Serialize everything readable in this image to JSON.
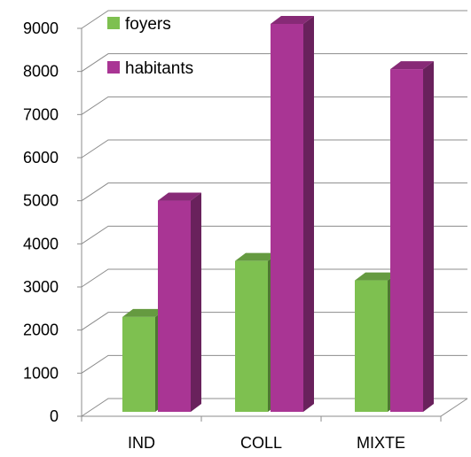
{
  "chart_data": {
    "type": "bar",
    "title": "",
    "xlabel": "",
    "ylabel": "",
    "categories": [
      "IND",
      "COLL",
      "MIXTE"
    ],
    "series": [
      {
        "name": "foyers",
        "values": [
          2200,
          3500,
          3050
        ],
        "color": "#7ec050"
      },
      {
        "name": "habitants",
        "values": [
          4900,
          9000,
          7950
        ],
        "color": "#a93594"
      }
    ],
    "ylim": [
      0,
      9000
    ],
    "yticks": [
      0,
      1000,
      2000,
      3000,
      4000,
      5000,
      6000,
      7000,
      8000,
      9000
    ],
    "grid": true,
    "legend_position": "top-left",
    "style": "3d-column"
  }
}
